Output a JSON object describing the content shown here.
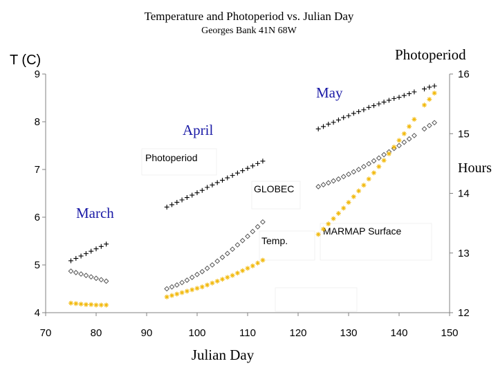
{
  "chart_data": {
    "type": "scatter",
    "title": "Temperature and Photoperiod  vs. Julian Day",
    "subtitle": "Georges Bank 41N 68W",
    "xlabel": "Julian Day",
    "ylabel_left": "T  (C)",
    "ylabel_right_top": "Photoperiod",
    "ylabel_right_side": "Hours",
    "xlim": [
      70,
      150
    ],
    "ylim_left": [
      4,
      9
    ],
    "ylim_right": [
      12,
      16
    ],
    "xticks": [
      "70",
      "80",
      "90",
      "100",
      "110",
      "120",
      "130",
      "140",
      "150"
    ],
    "yticks_left": [
      "4",
      "5",
      "6",
      "7",
      "8",
      "9"
    ],
    "yticks_right": [
      "12",
      "13",
      "14",
      "15",
      "16"
    ],
    "grid": false,
    "month_labels": [
      "March",
      "April",
      "May"
    ],
    "annotations": [
      "Photoperiod",
      "GLOBEC",
      "Temp.",
      "MARMAP Surface"
    ],
    "colors": {
      "photoperiod": "#000000",
      "globec": "#555555",
      "marmap": "#f2b90c",
      "months": "#1a1aa6"
    },
    "series": [
      {
        "key": "photoperiod",
        "axis": "right",
        "marker": "plus",
        "segments": [
          {
            "x": [
              75,
              76,
              77,
              78,
              79,
              80,
              81,
              82
            ],
            "y": [
              12.87,
              12.91,
              12.95,
              12.99,
              13.03,
              13.07,
              13.11,
              13.15
            ]
          },
          {
            "x": [
              94,
              95,
              96,
              97,
              98,
              99,
              100,
              101,
              102,
              103,
              104,
              105,
              106,
              107,
              108,
              109,
              110,
              111,
              112,
              113
            ],
            "y": [
              13.77,
              13.81,
              13.85,
              13.89,
              13.93,
              13.97,
              14.01,
              14.05,
              14.1,
              14.14,
              14.18,
              14.22,
              14.26,
              14.3,
              14.34,
              14.38,
              14.42,
              14.46,
              14.5,
              14.54
            ]
          },
          {
            "x": [
              124,
              125,
              126,
              127,
              128,
              129,
              130,
              131,
              132,
              133,
              134,
              135,
              136,
              137,
              138,
              139,
              140,
              141,
              142,
              143,
              145,
              146,
              147
            ],
            "y": [
              15.08,
              15.12,
              15.16,
              15.19,
              15.23,
              15.27,
              15.3,
              15.34,
              15.37,
              15.4,
              15.44,
              15.47,
              15.5,
              15.53,
              15.56,
              15.59,
              15.61,
              15.64,
              15.67,
              15.7,
              15.75,
              15.78,
              15.8
            ]
          }
        ]
      },
      {
        "key": "globec",
        "axis": "left",
        "marker": "diamond",
        "segments": [
          {
            "x": [
              75,
              76,
              77,
              78,
              79,
              80,
              81,
              82
            ],
            "y": [
              4.87,
              4.84,
              4.81,
              4.78,
              4.75,
              4.72,
              4.69,
              4.66
            ]
          },
          {
            "x": [
              94,
              95,
              96,
              97,
              98,
              99,
              100,
              101,
              102,
              103,
              104,
              105,
              106,
              107,
              108,
              109,
              110,
              111,
              112,
              113
            ],
            "y": [
              4.5,
              4.54,
              4.58,
              4.63,
              4.68,
              4.74,
              4.8,
              4.86,
              4.93,
              5.0,
              5.08,
              5.16,
              5.24,
              5.33,
              5.42,
              5.51,
              5.6,
              5.7,
              5.8,
              5.9
            ]
          },
          {
            "x": [
              124,
              125,
              126,
              127,
              128,
              129,
              130,
              131,
              132,
              133,
              134,
              135,
              136,
              137,
              138,
              139,
              140,
              141,
              142,
              143,
              145,
              146,
              147
            ],
            "y": [
              6.64,
              6.68,
              6.72,
              6.76,
              6.8,
              6.85,
              6.9,
              6.95,
              7.0,
              7.06,
              7.12,
              7.18,
              7.24,
              7.31,
              7.37,
              7.44,
              7.5,
              7.57,
              7.64,
              7.71,
              7.85,
              7.92,
              7.98
            ]
          }
        ]
      },
      {
        "key": "marmap",
        "axis": "left",
        "marker": "asterisk",
        "segments": [
          {
            "x": [
              75,
              76,
              77,
              78,
              79,
              80,
              81,
              82
            ],
            "y": [
              4.2,
              4.19,
              4.18,
              4.17,
              4.17,
              4.16,
              4.16,
              4.16
            ]
          },
          {
            "x": [
              94,
              95,
              96,
              97,
              98,
              99,
              100,
              101,
              102,
              103,
              104,
              105,
              106,
              107,
              108,
              109,
              110,
              111,
              112,
              113
            ],
            "y": [
              4.33,
              4.36,
              4.39,
              4.42,
              4.45,
              4.48,
              4.51,
              4.54,
              4.58,
              4.62,
              4.66,
              4.7,
              4.74,
              4.78,
              4.83,
              4.88,
              4.93,
              4.98,
              5.04,
              5.1
            ]
          },
          {
            "x": [
              124,
              125,
              126,
              127,
              128,
              129,
              130,
              131,
              132,
              133,
              134,
              135,
              136,
              137,
              138,
              139,
              140,
              141,
              142,
              143,
              145,
              146,
              147
            ],
            "y": [
              5.64,
              5.75,
              5.86,
              5.97,
              6.08,
              6.19,
              6.31,
              6.43,
              6.55,
              6.67,
              6.8,
              6.93,
              7.06,
              7.19,
              7.33,
              7.47,
              7.61,
              7.75,
              7.9,
              8.05,
              8.35,
              8.47,
              8.6
            ]
          }
        ]
      }
    ]
  }
}
